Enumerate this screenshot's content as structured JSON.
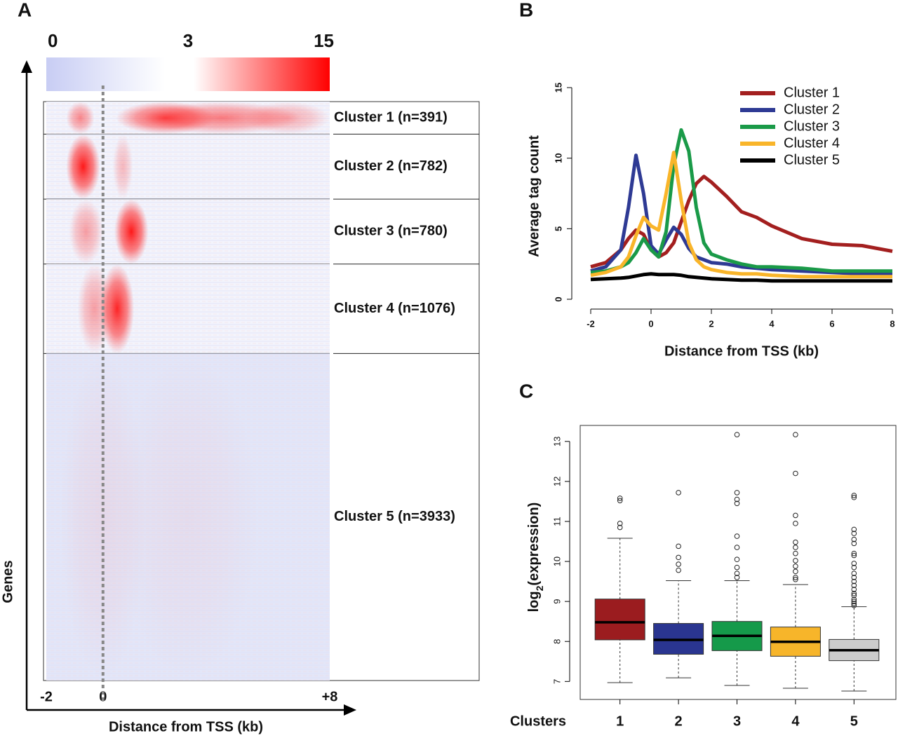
{
  "chart_data": [
    {
      "panel": "A",
      "type": "heatmap",
      "colorbar_ticks": [
        0,
        3,
        15
      ],
      "colors": {
        "low": "#c8cdf4",
        "mid": "#ffffff",
        "high": "#ff0000"
      },
      "categories": [
        "Cluster 1 (n=391)",
        "Cluster 2 (n=782)",
        "Cluster 3 (n=780)",
        "Cluster 4 (n=1076)",
        "Cluster 5 (n=3933)"
      ],
      "values": [
        391,
        782,
        780,
        1076,
        3933
      ],
      "xlim": [
        -2,
        8
      ],
      "xticks": [
        -2,
        0,
        {
          "value": 8,
          "label": "+8"
        }
      ],
      "xlabel": "Distance from TSS (kb)",
      "ylabel": "Genes"
    },
    {
      "panel": "B",
      "type": "line",
      "x": [
        -2,
        -1.5,
        -1,
        -0.75,
        -0.5,
        -0.25,
        0,
        0.25,
        0.5,
        0.75,
        1,
        1.25,
        1.5,
        1.75,
        2,
        2.5,
        3,
        3.5,
        4,
        5,
        6,
        7,
        8
      ],
      "series": [
        {
          "name": "Cluster 1",
          "color": "#a31f1f",
          "values": [
            2.3,
            2.6,
            3.5,
            4.3,
            4.9,
            4.6,
            3.5,
            3.0,
            3.3,
            4.0,
            5.5,
            7.0,
            8.2,
            8.7,
            8.3,
            7.3,
            6.2,
            5.8,
            5.2,
            4.3,
            3.9,
            3.8,
            3.4
          ]
        },
        {
          "name": "Cluster 2",
          "color": "#2e3a94",
          "values": [
            2.0,
            2.3,
            3.5,
            6.5,
            10.2,
            7.5,
            3.8,
            3.2,
            4.2,
            5.1,
            4.6,
            3.6,
            3.0,
            2.8,
            2.6,
            2.5,
            2.3,
            2.2,
            2.1,
            2.0,
            1.9,
            1.8,
            1.8
          ]
        },
        {
          "name": "Cluster 3",
          "color": "#1a9a48",
          "values": [
            1.9,
            2.0,
            2.3,
            2.6,
            3.3,
            4.3,
            3.5,
            3.0,
            4.8,
            9.5,
            12.0,
            10.5,
            6.5,
            4.0,
            3.2,
            2.8,
            2.5,
            2.3,
            2.3,
            2.2,
            2.0,
            2.0,
            2.0
          ]
        },
        {
          "name": "Cluster 4",
          "color": "#f9b52a",
          "values": [
            1.7,
            1.9,
            2.3,
            3.0,
            4.5,
            5.8,
            5.2,
            4.9,
            7.5,
            10.4,
            7.0,
            4.0,
            2.8,
            2.3,
            2.1,
            1.9,
            1.8,
            1.8,
            1.7,
            1.6,
            1.6,
            1.6,
            1.6
          ]
        },
        {
          "name": "Cluster 5",
          "color": "#000000",
          "values": [
            1.4,
            1.45,
            1.5,
            1.55,
            1.65,
            1.75,
            1.8,
            1.75,
            1.75,
            1.75,
            1.7,
            1.6,
            1.55,
            1.5,
            1.45,
            1.4,
            1.35,
            1.35,
            1.3,
            1.3,
            1.3,
            1.3,
            1.3
          ]
        }
      ],
      "xlim": [
        -2,
        8
      ],
      "ylim": [
        0,
        15
      ],
      "xticks": [
        -2,
        0,
        2,
        4,
        6,
        8
      ],
      "yticks": [
        0,
        5,
        10,
        15
      ],
      "xlabel": "Distance from TSS (kb)",
      "ylabel": "Average tag count",
      "legend": "top-right"
    },
    {
      "panel": "C",
      "type": "box",
      "categories": [
        "1",
        "2",
        "3",
        "4",
        "5"
      ],
      "boxes": [
        {
          "color": "#9b1c1f",
          "low": 6.97,
          "q1": 8.04,
          "median": 8.48,
          "q3": 9.06,
          "high": 10.58,
          "outliers": [
            10.85,
            10.95,
            11.52,
            11.58
          ]
        },
        {
          "color": "#2a3590",
          "low": 7.09,
          "q1": 7.68,
          "median": 8.04,
          "q3": 8.45,
          "high": 9.52,
          "outliers": [
            9.78,
            9.93,
            10.1,
            10.38,
            11.72
          ]
        },
        {
          "color": "#159a4a",
          "low": 6.9,
          "q1": 7.77,
          "median": 8.14,
          "q3": 8.5,
          "high": 9.52,
          "outliers": [
            9.6,
            9.7,
            9.85,
            10.05,
            10.35,
            10.63,
            11.45,
            11.55,
            11.72,
            13.17
          ]
        },
        {
          "color": "#f7b52a",
          "low": 6.83,
          "q1": 7.63,
          "median": 7.99,
          "q3": 8.36,
          "high": 9.42,
          "outliers": [
            9.55,
            9.6,
            9.75,
            9.88,
            10.02,
            10.2,
            10.35,
            10.48,
            10.95,
            11.15,
            12.2,
            13.17
          ]
        },
        {
          "color": "#cccccc",
          "low": 6.76,
          "q1": 7.52,
          "median": 7.78,
          "q3": 8.05,
          "high": 8.87,
          "outliers": [
            8.9,
            8.95,
            9.0,
            9.05,
            9.15,
            9.2,
            9.3,
            9.4,
            9.5,
            9.6,
            9.7,
            9.85,
            9.95,
            10.15,
            10.2,
            10.45,
            10.55,
            10.7,
            10.8,
            11.6,
            11.65
          ]
        }
      ],
      "ylim": [
        6.55,
        13.4
      ],
      "yticks": [
        7,
        8,
        9,
        10,
        11,
        12,
        13
      ],
      "xlabel": "Clusters",
      "ylabel": [
        "log",
        "2",
        "(expression)"
      ]
    }
  ]
}
